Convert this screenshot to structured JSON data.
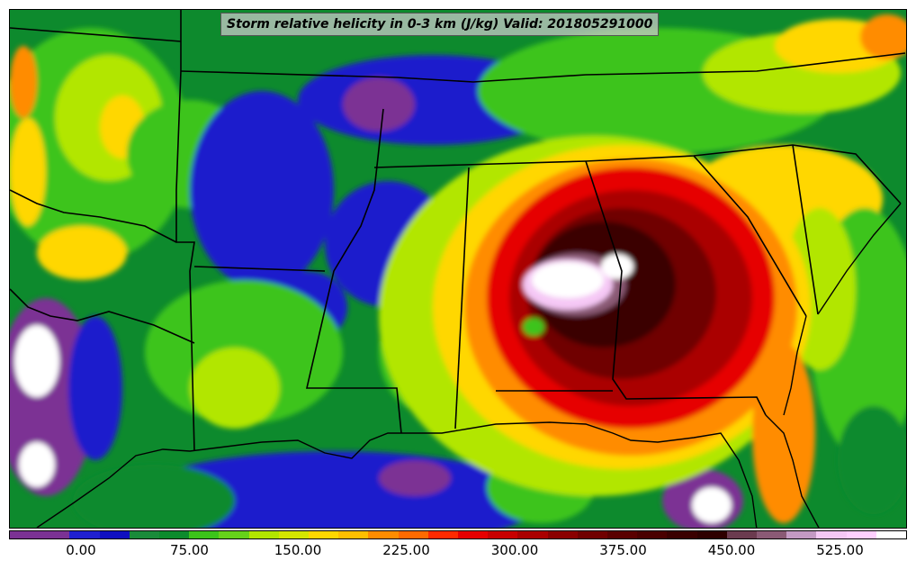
{
  "title": "Storm relative helicity in 0-3 km (J/kg) Valid: 201805291000",
  "colorbar": {
    "colors": [
      "#7b3294",
      "#7b3294",
      "#2020d0",
      "#1010c0",
      "#1a8a3a",
      "#0d8a2d",
      "#3cc41a",
      "#66d11a",
      "#b2e600",
      "#d4e600",
      "#ffd700",
      "#ffbf00",
      "#ff8c00",
      "#ff6a00",
      "#ff2a00",
      "#e60000",
      "#c80000",
      "#aa0000",
      "#8a0000",
      "#700000",
      "#5a0000",
      "#4a0000",
      "#3a0000",
      "#2e0000",
      "#6b3b4f",
      "#8a5a75",
      "#c49ac4",
      "#f5c8f5",
      "#ffd0ff",
      "#ffffff"
    ],
    "ticks": [
      "0.00",
      "75.00",
      "150.00",
      "225.00",
      "300.00",
      "375.00",
      "450.00",
      "525.00"
    ]
  },
  "legend_colors": {
    "purple": "#7b3294",
    "blue": "#1a1acc",
    "dark_green": "#0d8a2d",
    "green": "#3cc41a",
    "yellow_green": "#b2e600",
    "yellow": "#ffd700",
    "orange": "#ff8c00",
    "red": "#e60000",
    "dark_red": "#8a0000",
    "maroon": "#3a0000",
    "pink": "#f5c8f5"
  }
}
